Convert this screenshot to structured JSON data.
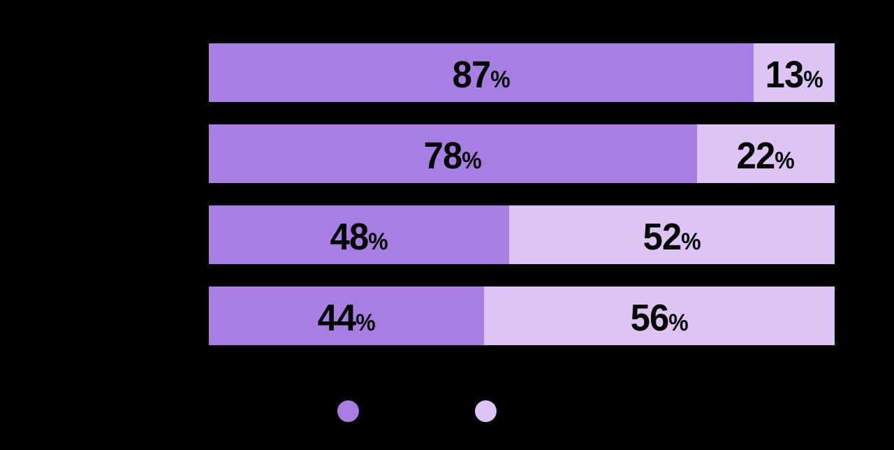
{
  "page": {
    "background": "#000000",
    "text_color": "#000000"
  },
  "chart_data": {
    "type": "bar",
    "orientation": "horizontal",
    "stacked": true,
    "xlim": [
      0,
      100
    ],
    "label_suffix": "%",
    "grid": false,
    "axis_labels_visible": false,
    "legend_position": "bottom",
    "legend_labels_visible": false,
    "series": [
      {
        "color": "#a87ee2",
        "values": [
          87,
          78,
          48,
          44
        ]
      },
      {
        "color": "#dcc5f5",
        "values": [
          13,
          22,
          52,
          56
        ]
      }
    ]
  }
}
